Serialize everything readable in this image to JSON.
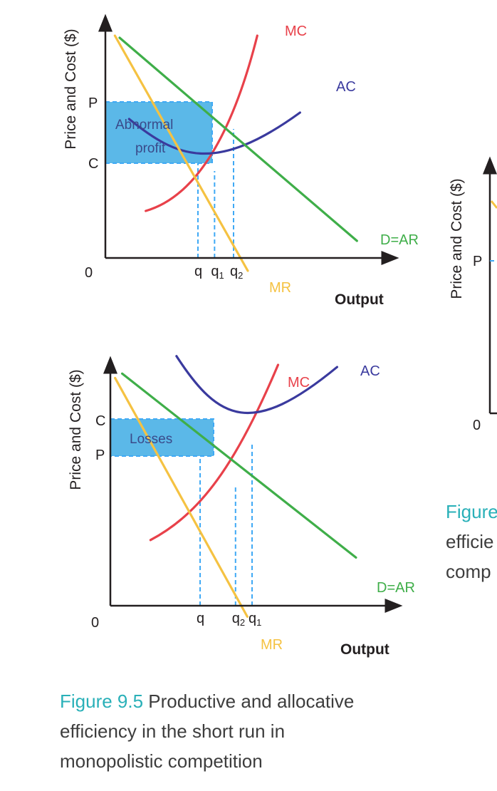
{
  "colors": {
    "mc": "#e8414a",
    "ac": "#3a3a9e",
    "demand": "#3fae49",
    "mr": "#f5c242",
    "area": "#5bb8e8",
    "dash": "#3fa9f5",
    "axis": "#231f20",
    "caption_accent": "#29b0b8"
  },
  "chart_data": [
    {
      "type": "line",
      "id": "top",
      "title": "Abnormal profit",
      "xlabel": "Output",
      "ylabel": "Price and Cost ($)",
      "origin_label": "0",
      "y_ticks": [
        {
          "label": "P",
          "value": 7.3
        },
        {
          "label": "C",
          "value": 4.6
        }
      ],
      "x_ticks": [
        {
          "label": "q",
          "sub": "",
          "value": 3.9
        },
        {
          "label": "q",
          "sub": "1",
          "value": 4.6
        },
        {
          "label": "q",
          "sub": "2",
          "value": 5.4
        }
      ],
      "xlim": [
        0,
        12
      ],
      "ylim": [
        0,
        11
      ],
      "series": [
        {
          "name": "MC",
          "points": [
            [
              1.7,
              2.2
            ],
            [
              3.9,
              2.9
            ],
            [
              5.4,
              6.0
            ],
            [
              6.4,
              10.4
            ]
          ]
        },
        {
          "name": "AC",
          "points": [
            [
              1.0,
              6.5
            ],
            [
              3.0,
              4.7
            ],
            [
              4.6,
              3.9
            ],
            [
              8.2,
              6.8
            ]
          ]
        },
        {
          "name": "D=AR",
          "points": [
            [
              0.6,
              10.3
            ],
            [
              10.6,
              0.8
            ]
          ]
        },
        {
          "name": "MR",
          "points": [
            [
              0.4,
              10.4
            ],
            [
              6.0,
              -0.6
            ]
          ]
        }
      ],
      "area_label_1": "Abnormal",
      "area_label_2": "profit"
    },
    {
      "type": "line",
      "id": "bottom",
      "title": "Losses",
      "xlabel": "Output",
      "ylabel": "Price and Cost ($)",
      "origin_label": "0",
      "y_ticks": [
        {
          "label": "C",
          "value": 8.1
        },
        {
          "label": "P",
          "value": 6.7
        }
      ],
      "x_ticks": [
        {
          "label": "q",
          "sub": "",
          "value": 3.8
        },
        {
          "label": "q",
          "sub": "2",
          "value": 5.3
        },
        {
          "label": "q",
          "sub": "1",
          "value": 6.0
        }
      ],
      "xlim": [
        0,
        12
      ],
      "ylim": [
        0,
        11
      ],
      "series": [
        {
          "name": "MC",
          "points": [
            [
              1.7,
              3.0
            ],
            [
              3.8,
              4.2
            ],
            [
              5.3,
              6.4
            ],
            [
              7.1,
              11.0
            ]
          ]
        },
        {
          "name": "AC",
          "points": [
            [
              2.8,
              11.4
            ],
            [
              4.6,
              8.4
            ],
            [
              6.0,
              7.7
            ],
            [
              9.6,
              10.9
            ]
          ]
        },
        {
          "name": "D=AR",
          "points": [
            [
              0.5,
              10.6
            ],
            [
              10.4,
              2.2
            ]
          ]
        },
        {
          "name": "MR",
          "points": [
            [
              0.2,
              10.4
            ],
            [
              5.8,
              -0.5
            ]
          ]
        }
      ],
      "area_label": "Losses"
    }
  ],
  "figure_right": {
    "ylabel": "Price and Cost ($)",
    "p_label": "P",
    "origin_label": "0",
    "caption_line1": "Figure",
    "caption_line2": "efficie",
    "caption_line3": "comp"
  },
  "caption": {
    "figure_number": "Figure 9.5",
    "line1_rest": " Productive and allocative",
    "line2": "efficiency in the short run in",
    "line3": "monopolistic competition"
  }
}
